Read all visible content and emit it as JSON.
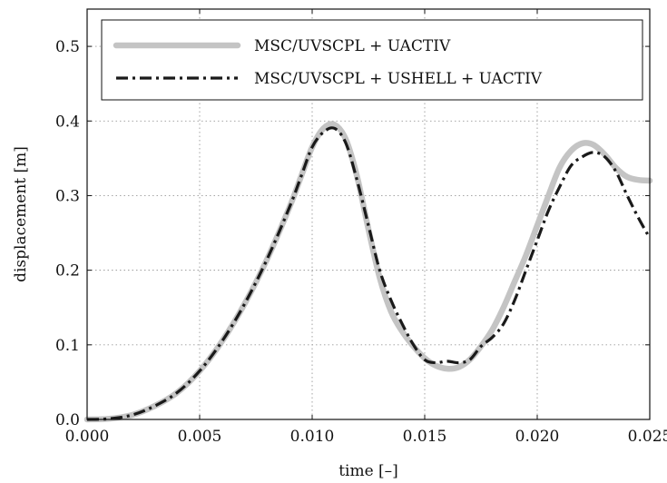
{
  "chart_data": {
    "type": "line",
    "title": "",
    "xlabel": "time [–]",
    "ylabel": "displacement [m]",
    "xlim": [
      0.0,
      0.025
    ],
    "ylim": [
      0.0,
      0.55
    ],
    "x_ticks": [
      "0.000",
      "0.005",
      "0.010",
      "0.015",
      "0.020",
      "0.025"
    ],
    "x_tick_values": [
      0.0,
      0.005,
      0.01,
      0.015,
      0.02,
      0.025
    ],
    "y_ticks": [
      "0.0",
      "0.1",
      "0.2",
      "0.3",
      "0.4",
      "0.5"
    ],
    "y_tick_values": [
      0.0,
      0.1,
      0.2,
      0.3,
      0.4,
      0.5
    ],
    "grid": true,
    "legend_position": "top",
    "series": [
      {
        "name": "MSC/UVSCPL + UACTIV",
        "color": "#c4c4c4",
        "style": "solid-thick",
        "x": [
          0.0,
          0.001,
          0.002,
          0.003,
          0.004,
          0.005,
          0.006,
          0.007,
          0.008,
          0.009,
          0.0095,
          0.01,
          0.0105,
          0.011,
          0.0115,
          0.012,
          0.0125,
          0.013,
          0.0135,
          0.014,
          0.0145,
          0.015,
          0.0155,
          0.016,
          0.0165,
          0.017,
          0.0175,
          0.018,
          0.0185,
          0.019,
          0.0195,
          0.02,
          0.0205,
          0.021,
          0.0215,
          0.022,
          0.0225,
          0.023,
          0.0235,
          0.024,
          0.0245,
          0.025
        ],
        "y": [
          0.0,
          0.001,
          0.006,
          0.018,
          0.036,
          0.065,
          0.105,
          0.155,
          0.215,
          0.285,
          0.325,
          0.365,
          0.39,
          0.395,
          0.375,
          0.325,
          0.255,
          0.19,
          0.145,
          0.118,
          0.098,
          0.082,
          0.072,
          0.068,
          0.07,
          0.08,
          0.098,
          0.12,
          0.15,
          0.185,
          0.22,
          0.26,
          0.3,
          0.338,
          0.36,
          0.37,
          0.368,
          0.355,
          0.337,
          0.325,
          0.321,
          0.32
        ]
      },
      {
        "name": "MSC/UVSCPL + USHELL + UACTIV",
        "color": "#1a1a1a",
        "style": "dash-dot",
        "x": [
          0.0,
          0.001,
          0.002,
          0.003,
          0.004,
          0.005,
          0.006,
          0.007,
          0.008,
          0.009,
          0.0095,
          0.01,
          0.0105,
          0.011,
          0.0115,
          0.012,
          0.0125,
          0.013,
          0.0135,
          0.014,
          0.0145,
          0.015,
          0.0155,
          0.016,
          0.0165,
          0.017,
          0.0175,
          0.018,
          0.0185,
          0.019,
          0.0195,
          0.02,
          0.0205,
          0.021,
          0.0215,
          0.022,
          0.0225,
          0.023,
          0.0235,
          0.024,
          0.0245,
          0.025
        ],
        "y": [
          0.0,
          0.001,
          0.006,
          0.018,
          0.036,
          0.065,
          0.105,
          0.155,
          0.215,
          0.285,
          0.325,
          0.365,
          0.385,
          0.39,
          0.37,
          0.32,
          0.26,
          0.2,
          0.16,
          0.128,
          0.1,
          0.08,
          0.076,
          0.078,
          0.076,
          0.08,
          0.098,
          0.11,
          0.128,
          0.16,
          0.2,
          0.24,
          0.28,
          0.312,
          0.34,
          0.352,
          0.358,
          0.352,
          0.332,
          0.3,
          0.27,
          0.243
        ]
      }
    ]
  }
}
